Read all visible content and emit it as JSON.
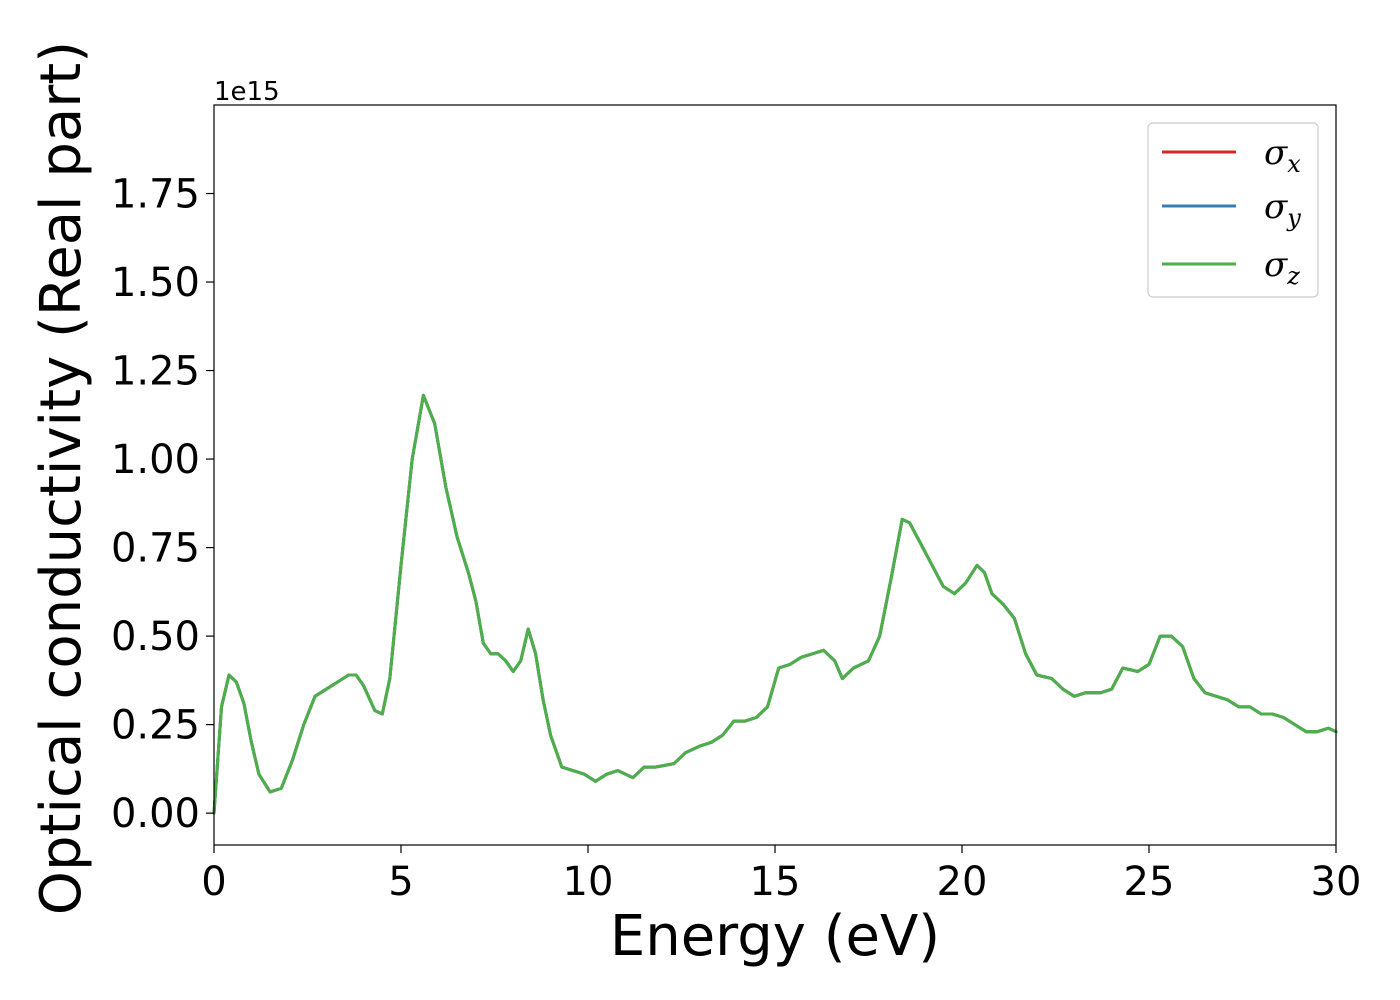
{
  "chart_data": {
    "type": "line",
    "xlabel": "Energy (eV)",
    "ylabel": "Optical conductivity (Real part)",
    "offset_text": "1e15",
    "xlim": [
      0,
      30
    ],
    "ylim": [
      -0.09,
      2.0
    ],
    "y_multiplier": 1000000000000000.0,
    "x_ticks": [
      0,
      5,
      10,
      15,
      20,
      25,
      30
    ],
    "x_tick_labels": [
      "0",
      "5",
      "10",
      "15",
      "20",
      "25",
      "30"
    ],
    "y_ticks": [
      0,
      0.25,
      0.5,
      0.75,
      1.0,
      1.25,
      1.5,
      1.75
    ],
    "y_tick_labels": [
      "0.00",
      "0.25",
      "0.50",
      "0.75",
      "1.00",
      "1.25",
      "1.50",
      "1.75"
    ],
    "grid": false,
    "legend_position": "top-right",
    "x": [
      0,
      0.2,
      0.4,
      0.6,
      0.8,
      1.0,
      1.2,
      1.5,
      1.8,
      2.1,
      2.4,
      2.7,
      3.0,
      3.3,
      3.6,
      3.8,
      4.0,
      4.3,
      4.5,
      4.7,
      5.0,
      5.3,
      5.6,
      5.9,
      6.2,
      6.5,
      6.8,
      7.0,
      7.2,
      7.4,
      7.6,
      7.8,
      8.0,
      8.2,
      8.4,
      8.6,
      8.8,
      9.0,
      9.3,
      9.6,
      9.9,
      10.2,
      10.5,
      10.8,
      11.2,
      11.5,
      11.8,
      12.3,
      12.6,
      13.0,
      13.3,
      13.6,
      13.9,
      14.2,
      14.5,
      14.8,
      15.1,
      15.4,
      15.7,
      16.0,
      16.3,
      16.6,
      16.8,
      17.1,
      17.5,
      17.8,
      18.1,
      18.4,
      18.6,
      18.9,
      19.2,
      19.5,
      19.8,
      20.1,
      20.4,
      20.6,
      20.8,
      21.1,
      21.4,
      21.7,
      22.0,
      22.4,
      22.7,
      23.0,
      23.3,
      23.7,
      24.0,
      24.3,
      24.7,
      25.0,
      25.3,
      25.6,
      25.9,
      26.2,
      26.5,
      26.8,
      27.1,
      27.4,
      27.7,
      28.0,
      28.3,
      28.6,
      28.9,
      29.2,
      29.5,
      29.8,
      30.0
    ],
    "series": [
      {
        "name": "σx",
        "color": "#d62728",
        "values": [
          0.0,
          0.3,
          0.39,
          0.37,
          0.31,
          0.2,
          0.11,
          0.06,
          0.07,
          0.15,
          0.25,
          0.33,
          0.35,
          0.37,
          0.39,
          0.39,
          0.36,
          0.29,
          0.28,
          0.38,
          0.7,
          1.0,
          1.18,
          1.1,
          0.92,
          0.78,
          0.68,
          0.6,
          0.48,
          0.45,
          0.45,
          0.43,
          0.4,
          0.43,
          0.52,
          0.45,
          0.32,
          0.22,
          0.13,
          0.12,
          0.11,
          0.09,
          0.11,
          0.12,
          0.1,
          0.13,
          0.13,
          0.14,
          0.17,
          0.19,
          0.2,
          0.22,
          0.26,
          0.26,
          0.27,
          0.3,
          0.41,
          0.42,
          0.44,
          0.45,
          0.46,
          0.43,
          0.38,
          0.41,
          0.43,
          0.5,
          0.66,
          0.83,
          0.82,
          0.76,
          0.7,
          0.64,
          0.62,
          0.65,
          0.7,
          0.68,
          0.62,
          0.59,
          0.55,
          0.45,
          0.39,
          0.38,
          0.35,
          0.33,
          0.34,
          0.34,
          0.35,
          0.41,
          0.4,
          0.42,
          0.5,
          0.5,
          0.47,
          0.38,
          0.34,
          0.33,
          0.32,
          0.3,
          0.3,
          0.28,
          0.28,
          0.27,
          0.25,
          0.23,
          0.23,
          0.24,
          0.23
        ]
      },
      {
        "name": "σy",
        "color": "#377eb8",
        "values": [
          0.0,
          0.3,
          0.39,
          0.37,
          0.31,
          0.2,
          0.11,
          0.06,
          0.07,
          0.15,
          0.25,
          0.33,
          0.35,
          0.37,
          0.39,
          0.39,
          0.36,
          0.29,
          0.28,
          0.38,
          0.7,
          1.0,
          1.18,
          1.1,
          0.92,
          0.78,
          0.68,
          0.6,
          0.48,
          0.45,
          0.45,
          0.43,
          0.4,
          0.43,
          0.52,
          0.45,
          0.32,
          0.22,
          0.13,
          0.12,
          0.11,
          0.09,
          0.11,
          0.12,
          0.1,
          0.13,
          0.13,
          0.14,
          0.17,
          0.19,
          0.2,
          0.22,
          0.26,
          0.26,
          0.27,
          0.3,
          0.41,
          0.42,
          0.44,
          0.45,
          0.46,
          0.43,
          0.38,
          0.41,
          0.43,
          0.5,
          0.66,
          0.83,
          0.82,
          0.76,
          0.7,
          0.64,
          0.62,
          0.65,
          0.7,
          0.68,
          0.62,
          0.59,
          0.55,
          0.45,
          0.39,
          0.38,
          0.35,
          0.33,
          0.34,
          0.34,
          0.35,
          0.41,
          0.4,
          0.42,
          0.5,
          0.5,
          0.47,
          0.38,
          0.34,
          0.33,
          0.32,
          0.3,
          0.3,
          0.28,
          0.28,
          0.27,
          0.25,
          0.23,
          0.23,
          0.24,
          0.23
        ]
      },
      {
        "name": "σz",
        "color": "#4daf4a",
        "values": [
          0.0,
          0.3,
          0.39,
          0.37,
          0.31,
          0.2,
          0.11,
          0.06,
          0.07,
          0.15,
          0.25,
          0.33,
          0.35,
          0.37,
          0.39,
          0.39,
          0.36,
          0.29,
          0.28,
          0.38,
          0.7,
          1.0,
          1.18,
          1.1,
          0.92,
          0.78,
          0.68,
          0.6,
          0.48,
          0.45,
          0.45,
          0.43,
          0.4,
          0.43,
          0.52,
          0.45,
          0.32,
          0.22,
          0.13,
          0.12,
          0.11,
          0.09,
          0.11,
          0.12,
          0.1,
          0.13,
          0.13,
          0.14,
          0.17,
          0.19,
          0.2,
          0.22,
          0.26,
          0.26,
          0.27,
          0.3,
          0.41,
          0.42,
          0.44,
          0.45,
          0.46,
          0.43,
          0.38,
          0.41,
          0.43,
          0.5,
          0.66,
          0.83,
          0.82,
          0.76,
          0.7,
          0.64,
          0.62,
          0.65,
          0.7,
          0.68,
          0.62,
          0.59,
          0.55,
          0.45,
          0.39,
          0.38,
          0.35,
          0.33,
          0.34,
          0.34,
          0.35,
          0.41,
          0.4,
          0.42,
          0.5,
          0.5,
          0.47,
          0.38,
          0.34,
          0.33,
          0.32,
          0.3,
          0.3,
          0.28,
          0.28,
          0.27,
          0.25,
          0.23,
          0.23,
          0.24,
          0.23
        ]
      }
    ],
    "legend": [
      {
        "symbol": "σ",
        "subscript": "x"
      },
      {
        "symbol": "σ",
        "subscript": "y"
      },
      {
        "symbol": "σ",
        "subscript": "z"
      }
    ]
  }
}
